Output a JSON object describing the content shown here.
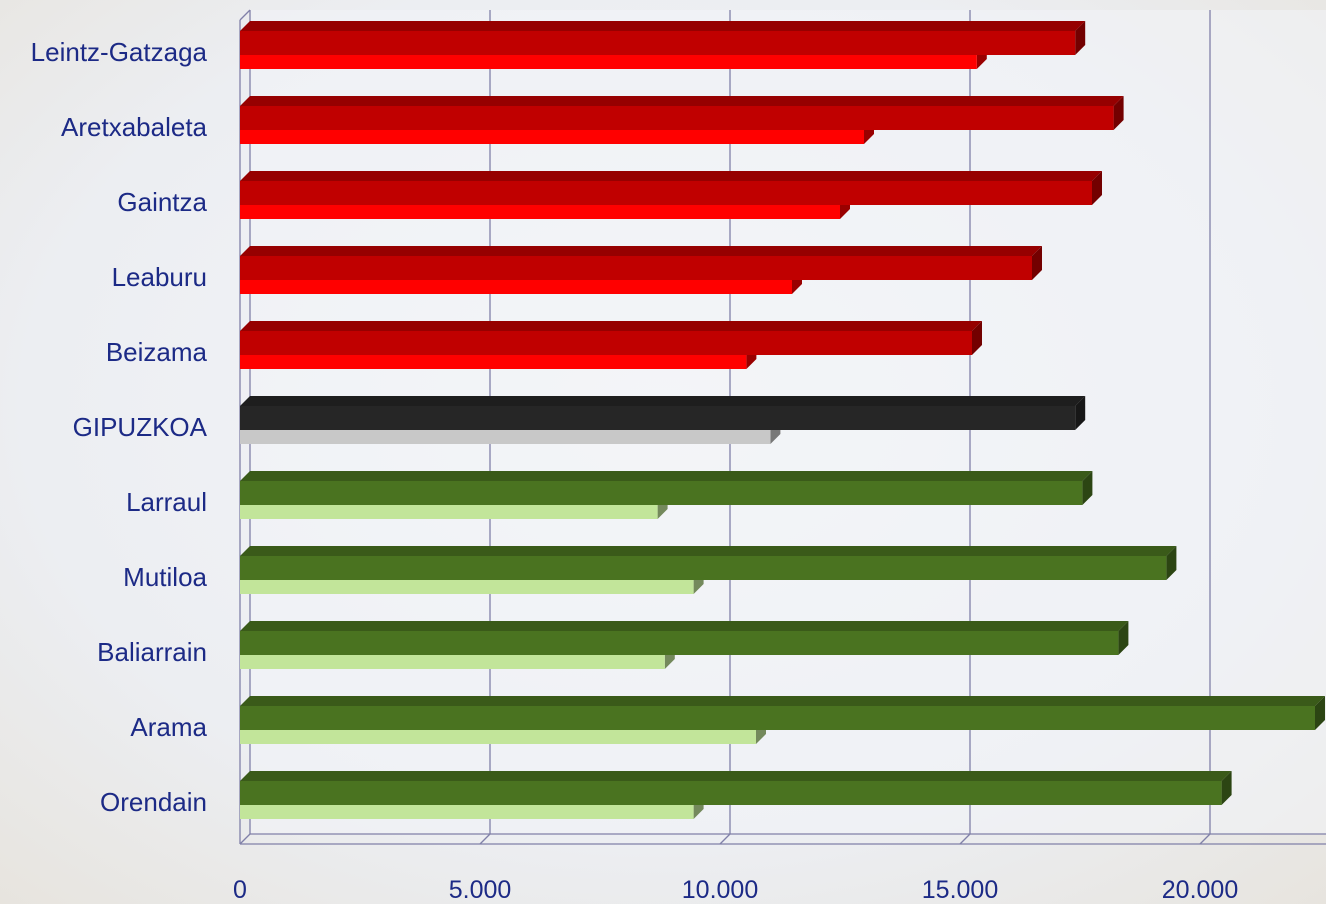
{
  "chart_data": {
    "type": "bar",
    "orientation": "horizontal",
    "categories": [
      "Leintz-Gatzaga",
      "Aretxabaleta",
      "Gaintza",
      "Leaburu",
      "Beizama",
      "GIPUZKOA",
      "Larraul",
      "Mutiloa",
      "Baliarrain",
      "Arama",
      "Orendain"
    ],
    "series": [
      {
        "values": [
          17400,
          18200,
          17750,
          16500,
          15250,
          17400,
          17550,
          19300,
          18300,
          22600,
          20450
        ]
      },
      {
        "values": [
          15350,
          13000,
          12500,
          11500,
          10550,
          11050,
          8700,
          9450,
          8850,
          10750,
          9450
        ]
      }
    ],
    "colors": {
      "group_1_series_1": "#c00000",
      "group_1_series_2": "#ff0000",
      "group_2_series_1": "#262626",
      "group_2_series_2": "#c8c8c8",
      "group_3_series_1": "#4a7320",
      "group_3_series_2": "#c2e59a",
      "axis_text": "#1c2a86",
      "gridline": "#8080a8"
    },
    "category_groups": [
      0,
      0,
      0,
      0,
      0,
      1,
      2,
      2,
      2,
      2,
      2
    ],
    "xlim": [
      0,
      22500
    ],
    "xticks": [
      {
        "value": 0,
        "label": "0"
      },
      {
        "value": 5000,
        "label": "5.000"
      },
      {
        "value": 10000,
        "label": "10.000"
      },
      {
        "value": 15000,
        "label": "15.000"
      },
      {
        "value": 20000,
        "label": "20.000"
      }
    ],
    "grid": true,
    "title": "",
    "xlabel": "",
    "ylabel": ""
  }
}
